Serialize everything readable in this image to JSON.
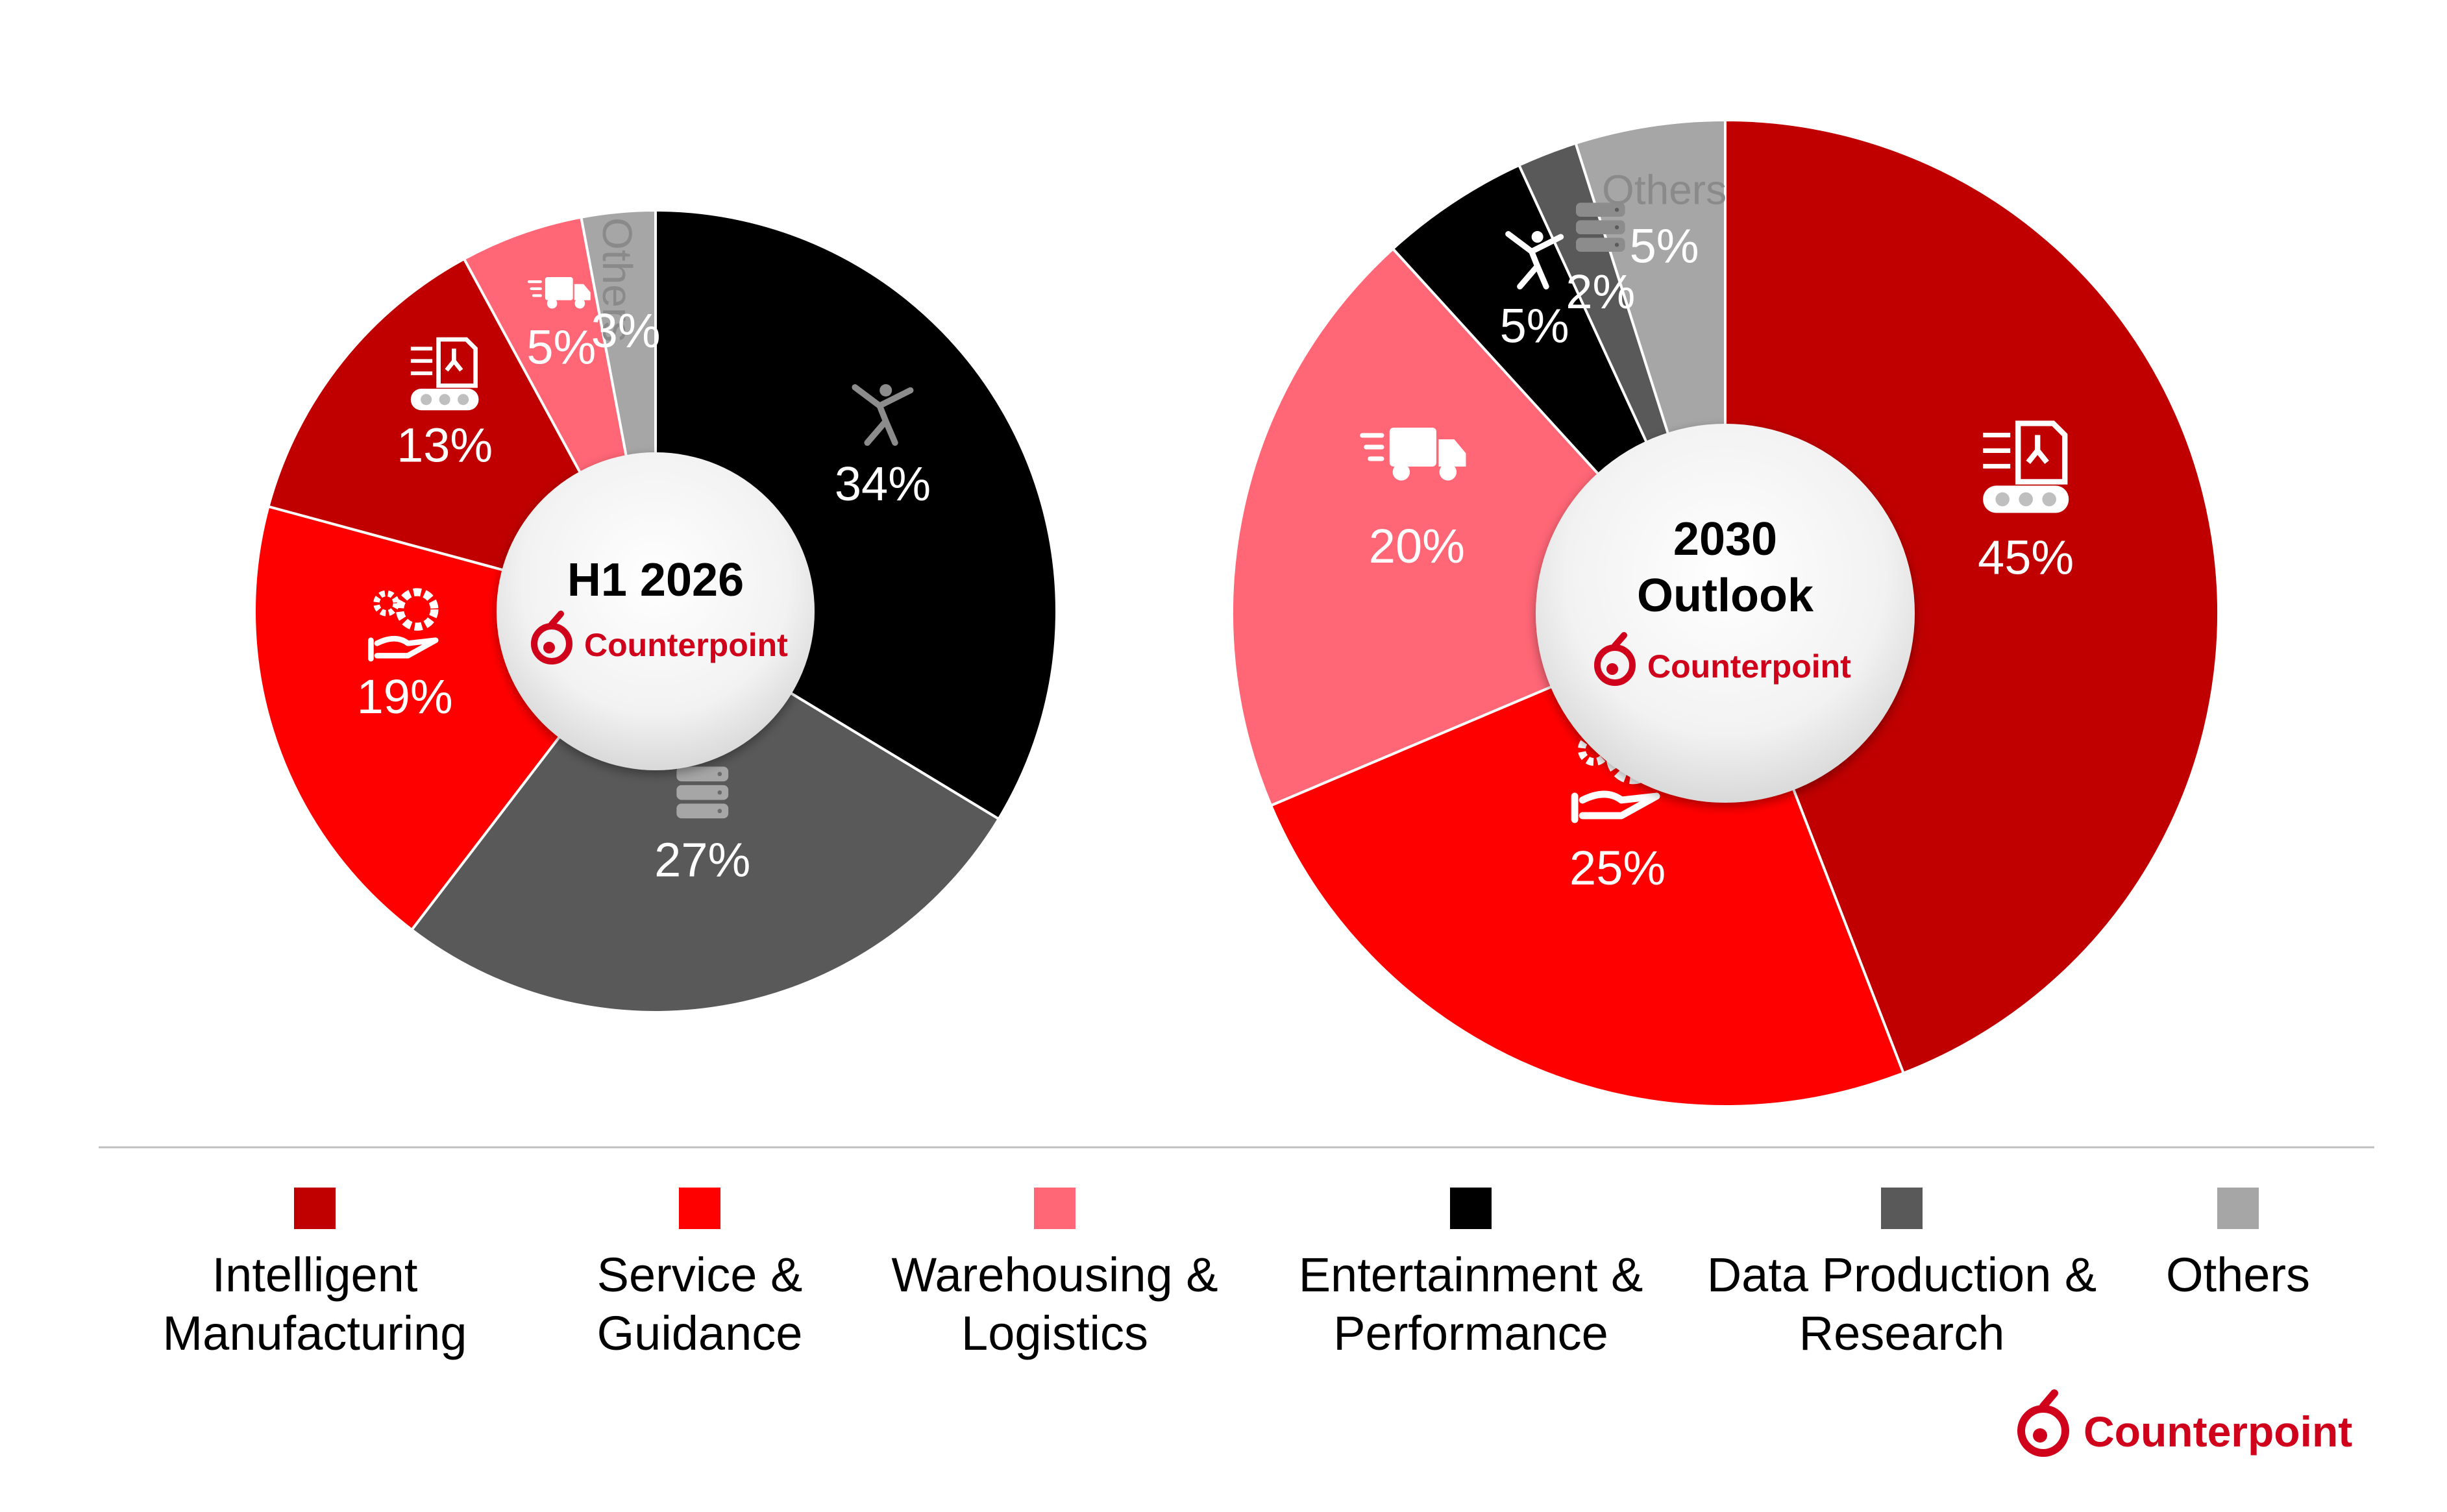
{
  "chart_data": [
    {
      "type": "pie",
      "title": "H1 2026",
      "categories": [
        "Entertainment & Performance",
        "Data Production & Research",
        "Service & Guidance",
        "Intelligent Manufacturing",
        "Warehousing & Logistics",
        "Others"
      ],
      "values": [
        34,
        27,
        19,
        13,
        5,
        3
      ],
      "labels": [
        "34%",
        "27%",
        "19%",
        "13%",
        "5%",
        "3%"
      ],
      "others_text": "Others"
    },
    {
      "type": "pie",
      "title": [
        "2030",
        "Outlook"
      ],
      "categories": [
        "Intelligent Manufacturing",
        "Service & Guidance",
        "Warehousing & Logistics",
        "Entertainment & Performance",
        "Data Production & Research",
        "Others"
      ],
      "values": [
        45,
        25,
        20,
        5,
        2,
        5
      ],
      "labels": [
        "45%",
        "25%",
        "20%",
        "5%",
        "2%",
        "5%"
      ],
      "others_text": "Others"
    }
  ],
  "colors": {
    "Intelligent Manufacturing": "#c00000",
    "Service & Guidance": "#ff0000",
    "Warehousing & Logistics": "#ff6676",
    "Entertainment & Performance": "#000000",
    "Data Production & Research": "#595959",
    "Others": "#a6a6a6"
  },
  "icons": {
    "Intelligent Manufacturing": "factory-robot-icon",
    "Service & Guidance": "gears-hand-icon",
    "Warehousing & Logistics": "delivery-truck-icon",
    "Entertainment & Performance": "dancer-icon",
    "Data Production & Research": "database-icon"
  },
  "legend": [
    {
      "label": [
        "Intelligent",
        "Manufacturing"
      ],
      "color": "#c00000"
    },
    {
      "label": [
        "Service &",
        "Guidance"
      ],
      "color": "#ff0000"
    },
    {
      "label": [
        "Warehousing &",
        "Logistics"
      ],
      "color": "#ff6676"
    },
    {
      "label": [
        "Entertainment &",
        "Performance"
      ],
      "color": "#000000"
    },
    {
      "label": [
        "Data Production &",
        "Research"
      ],
      "color": "#595959"
    },
    {
      "label": [
        "Others"
      ],
      "color": "#a6a6a6"
    }
  ],
  "brand": "Counterpoint"
}
